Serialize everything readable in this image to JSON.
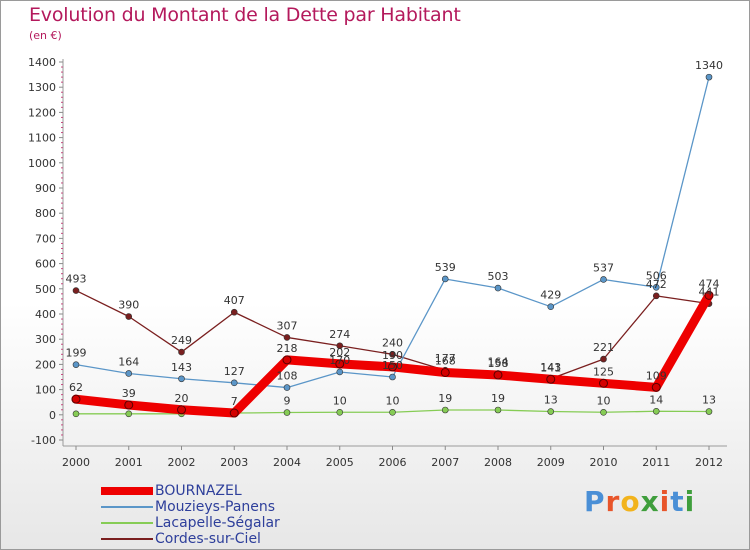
{
  "title": "Evolution du Montant de la Dette par Habitant",
  "subtitle": "(en €)",
  "logo": {
    "text": "Proxiti",
    "colors": [
      "#4a8fd6",
      "#e8552a",
      "#f2b31c",
      "#3f9e3c",
      "#e8552a",
      "#4a8fd6",
      "#3f9e3c"
    ]
  },
  "chart_data": {
    "type": "line",
    "title": "Evolution du Montant de la Dette par Habitant",
    "subtitle": "(en €)",
    "xlabel": "",
    "ylabel": "",
    "x": [
      "2000",
      "2001",
      "2002",
      "2003",
      "2004",
      "2005",
      "2006",
      "2007",
      "2008",
      "2009",
      "2010",
      "2011",
      "2012"
    ],
    "ylim": [
      -100,
      1400
    ],
    "yticks": [
      -100,
      0,
      100,
      200,
      300,
      400,
      500,
      600,
      700,
      800,
      900,
      1000,
      1100,
      1200,
      1300,
      1400
    ],
    "grid": false,
    "legend_position": "bottom-left",
    "series": [
      {
        "name": "Cordes-sur-Ciel",
        "color": "#7a1f1f",
        "style": "thin",
        "values": [
          493,
          390,
          249,
          407,
          307,
          274,
          240,
          177,
          164,
          143,
          221,
          472,
          441
        ],
        "labels": [
          "493",
          "390",
          "249",
          "407",
          "307",
          "274",
          "240",
          "177",
          "164",
          "143",
          "221",
          "472",
          "441"
        ]
      },
      {
        "name": "Mouzieys-Panens",
        "color": "#5b96c8",
        "style": "thin",
        "values": [
          199,
          164,
          143,
          127,
          108,
          170,
          150,
          539,
          503,
          429,
          537,
          506,
          1340
        ],
        "labels": [
          "199",
          "164",
          "143",
          "127",
          "108",
          "170",
          "150",
          "539",
          "503",
          "429",
          "537",
          "506",
          "1340"
        ]
      },
      {
        "name": "Lacapelle-Ségalar",
        "color": "#86cc55",
        "style": "thin",
        "values": [
          4,
          4,
          4,
          7,
          9,
          10,
          10,
          19,
          19,
          13,
          10,
          14,
          13
        ],
        "labels": [
          "",
          "",
          "",
          "",
          "9",
          "10",
          "10",
          "19",
          "19",
          "13",
          "10",
          "14",
          "13"
        ]
      },
      {
        "name": "BOURNAZEL",
        "color": "#ee0000",
        "style": "thick",
        "values": [
          62,
          39,
          20,
          7,
          218,
          202,
          190,
          168,
          158,
          141,
          125,
          109,
          474
        ],
        "labels": [
          "62",
          "39",
          "20",
          "7",
          "218",
          "202",
          "190",
          "168",
          "158",
          "141",
          "125",
          "109",
          "474"
        ]
      }
    ],
    "legend": [
      {
        "name": "BOURNAZEL",
        "color": "#ee0000",
        "style": "thick"
      },
      {
        "name": "Mouzieys-Panens",
        "color": "#5b96c8",
        "style": "thin"
      },
      {
        "name": "Lacapelle-Ségalar",
        "color": "#86cc55",
        "style": "thin"
      },
      {
        "name": "Cordes-sur-Ciel",
        "color": "#7a1f1f",
        "style": "thin"
      }
    ]
  }
}
